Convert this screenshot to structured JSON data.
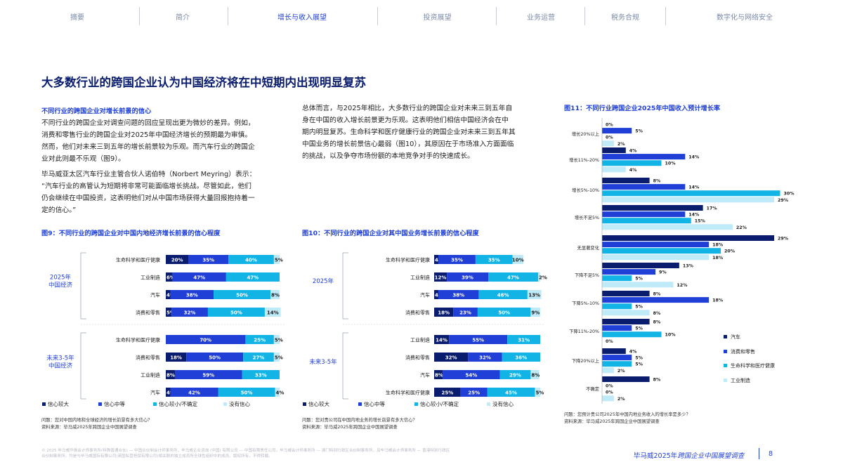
{
  "nav": {
    "items": [
      "摘要",
      "简介",
      "增长与收入展望",
      "投资展望",
      "业务运营",
      "税务合规",
      "数字化与网络安全"
    ],
    "active_index": 2
  },
  "page_title": "大多数行业的跨国企业认为中国经济将在中短期内出现明显复苏",
  "left_text": {
    "subhead": "不同行业的跨国企业对增长前景的信心",
    "para1_lines": [
      "不同行业的跨国企业对调查问题的回应呈现出更为微妙的差异。例如，",
      "消费和零售行业的跨国企业对2025年中国经济增长的预期最为审慎。",
      "然而，他们对未来三到五年的增长前景较为乐观。而汽车行业的跨国企",
      "业对此则最不乐观（图9）。"
    ],
    "para2_lines": [
      "毕马威亚太区汽车行业主管合伙人诺伯特（Norbert Meyring）表示：",
      "“汽车行业的高管认为短期将非常可能面临增长挑战。尽管如此，他们",
      "仍会继续在中国投资，这表明他们对从中国市场获得大量回报抱持着一",
      "定的信心。”"
    ]
  },
  "middle_text": {
    "para_lines": [
      "总体而言，与2025年相比，大多数行业的跨国企业对未来三到五年自",
      "身在中国的收入增长前景更为乐观。这表明他们相信中国经济会在中",
      "期内明显复苏。生命科学和医疗健康行业的跨国企业对未来三到五年其",
      "中国业务的增长前景信心最弱（图10），其原因在于市场准入方面面临",
      "的挑战，以及争夺市场份额的本地竞争对手的快速成长。"
    ]
  },
  "footer": {
    "legal_lines": [
      "© 2025 毕马威华振会计师事务所(特殊普通合伙) — 中国合伙制会计师事务所，毕马威企业咨询 (中国) 有限公司 — 中国有限责任公司，毕马威会计师事务所 — 澳门特别行政区合伙制事务所，及毕马威会计师事务所 — 香港特别行政区",
      "合伙制事务所，均是与毕马威国际有限公司(英国私营担保有限公司)相关联的独立成员所全球性组织中的成员。版权所有，不得转载。"
    ],
    "report_prefix": "毕马威2025年",
    "report_italic": "跨国企业中国展望调查",
    "page_number": "8"
  },
  "chart_data": [
    {
      "id": "fig9",
      "type": "bar",
      "stacked": true,
      "orientation": "horizontal",
      "title": "图9：不同行业的跨国企业对中国内地经济增长前景的信心程度",
      "series_names": [
        "信心较大",
        "信心中等",
        "信心较小/不确定",
        "没有信心"
      ],
      "colors": [
        "#0a1c6e",
        "#1f3fd6",
        "#12b4e6",
        "#bfeaf7"
      ],
      "groups": [
        {
          "label": [
            "2025年",
            "中国经济"
          ],
          "rows": [
            {
              "category": "生命科学和医疗健康",
              "values": [
                20,
                35,
                40,
                5
              ]
            },
            {
              "category": "工业制造",
              "values": [
                6,
                47,
                47,
                0
              ]
            },
            {
              "category": "汽车",
              "values": [
                4,
                38,
                50,
                8
              ]
            },
            {
              "category": "消费和零售",
              "values": [
                5,
                32,
                50,
                14
              ]
            }
          ]
        },
        {
          "label": [
            "未来3-5年",
            "中国经济"
          ],
          "rows": [
            {
              "category": "生命科学和医疗健康",
              "values": [
                0,
                70,
                25,
                5
              ]
            },
            {
              "category": "消费和零售",
              "values": [
                18,
                50,
                27,
                5
              ]
            },
            {
              "category": "工业制造",
              "values": [
                8,
                59,
                33,
                0
              ]
            },
            {
              "category": "汽车",
              "values": [
                4,
                42,
                50,
                4
              ]
            }
          ]
        }
      ],
      "note": "问题：您对中国内地和全球经济的增长前景有多大信心？",
      "source": "资料来源：毕马威2025年跨国企业中国展望调查"
    },
    {
      "id": "fig10",
      "type": "bar",
      "stacked": true,
      "orientation": "horizontal",
      "title": "图10：不同行业的跨国企业对其中国业务增长前景的信心程度",
      "series_names": [
        "信心较大",
        "信心中等",
        "信心较小/不确定",
        "没有信心"
      ],
      "colors": [
        "#0a1c6e",
        "#1f3fd6",
        "#12b4e6",
        "#bfeaf7"
      ],
      "groups": [
        {
          "label": [
            "2025年"
          ],
          "rows": [
            {
              "category": "生命科学和医疗健康",
              "values": [
                4,
                35,
                35,
                10
              ]
            },
            {
              "category": "工业制造",
              "values": [
                12,
                39,
                47,
                2
              ]
            },
            {
              "category": "汽车",
              "values": [
                4,
                38,
                46,
                13
              ]
            },
            {
              "category": "消费和零售",
              "values": [
                18,
                23,
                50,
                9
              ]
            }
          ]
        },
        {
          "label": [
            "未来3-5年"
          ],
          "rows": [
            {
              "category": "工业制造",
              "values": [
                14,
                55,
                31,
                0
              ]
            },
            {
              "category": "消费和零售",
              "values": [
                32,
                32,
                36,
                0
              ]
            },
            {
              "category": "汽车",
              "values": [
                8,
                54,
                29,
                8
              ]
            },
            {
              "category": "生命科学和医疗健康",
              "values": [
                25,
                25,
                45,
                5
              ]
            }
          ]
        }
      ],
      "note": "问题：您对贵公司在中国内地业务的增长前景有多大信心？",
      "source": "资料来源：毕马威2025年跨国企业中国展望调查"
    },
    {
      "id": "fig11",
      "type": "bar",
      "orientation": "horizontal",
      "grouped": true,
      "title": "图11：不同行业跨国企业2025年中国收入预计增长率",
      "series_names": [
        "汽车",
        "消费和零售",
        "生命科学和医疗健康",
        "工业制造"
      ],
      "colors": [
        "#0a1c6e",
        "#1f3fd6",
        "#12b4e6",
        "#bfeaf7"
      ],
      "categories": [
        "增长20%以上",
        "增长11%-20%",
        "增长5%-10%",
        "增长不足5%",
        "无显著变化",
        "下降不足5%",
        "下降5%-10%",
        "下降11%-20%",
        "下降20%以上",
        "不确定"
      ],
      "values": [
        [
          0,
          5,
          0,
          2
        ],
        [
          4,
          14,
          10,
          4
        ],
        [
          8,
          14,
          30,
          29
        ],
        [
          17,
          14,
          15,
          22
        ],
        [
          29,
          18,
          20,
          18
        ],
        [
          13,
          9,
          5,
          12
        ],
        [
          8,
          18,
          5,
          8
        ],
        [
          8,
          5,
          10,
          0
        ],
        [
          4,
          5,
          5,
          2
        ],
        [
          8,
          0,
          0,
          2
        ]
      ],
      "note": "问题：您预计贵公司2025年中国内地业务收入的增长率是多少？",
      "source": "资料来源：毕马威2025年跨国企业中国展望调查"
    }
  ]
}
